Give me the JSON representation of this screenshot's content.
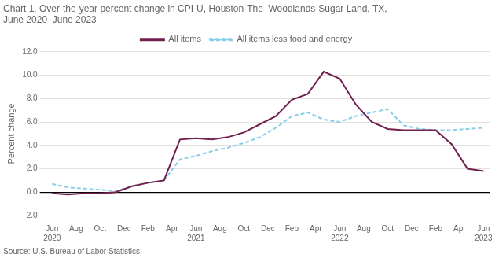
{
  "chart_data": {
    "type": "line",
    "title": "Chart 1. Over-the-year percent change in CPI-U, Houston-The  Woodlands-Sugar Land, TX,\nJune 2020–June 2023",
    "ylabel": "Percent change",
    "source": "Source: U.S. Bureau of Labor Statistics.",
    "x": [
      0,
      1.3333333333333333,
      2.6666666666666665,
      4,
      5.333333333333333,
      6.666666666666667,
      8,
      9.333333333333334,
      10.666666666666666,
      12,
      13.333333333333334,
      14.666666666666666,
      16,
      17.333333333333332,
      18.666666666666668,
      20,
      21.333333333333332,
      22.666666666666668,
      24,
      25.333333333333332,
      26.666666666666668,
      28,
      29.333333333333332,
      30.666666666666668,
      32,
      33.333333333333336,
      34.666666666666664,
      36
    ],
    "series": [
      {
        "name": "All items",
        "color": "#722050",
        "line_style": "solid",
        "values": [
          -0.1,
          -0.2,
          -0.1,
          -0.1,
          0.0,
          0.5,
          0.8,
          1.0,
          4.5,
          4.6,
          4.5,
          4.7,
          5.1,
          5.8,
          6.5,
          7.9,
          8.4,
          10.3,
          9.7,
          7.5,
          6.0,
          5.4,
          5.3,
          5.3,
          5.3,
          4.1,
          2.0,
          1.8
        ]
      },
      {
        "name": "All items less food and energy",
        "color": "#87CEEB",
        "line_style": "dashed",
        "values": [
          0.7,
          0.4,
          0.3,
          0.2,
          0.1,
          0.5,
          0.8,
          1.0,
          2.8,
          3.1,
          3.5,
          3.8,
          4.2,
          4.7,
          5.5,
          6.5,
          6.8,
          6.2,
          6.0,
          6.5,
          6.8,
          7.1,
          5.7,
          5.4,
          5.3,
          5.3,
          5.4,
          5.5
        ]
      }
    ],
    "xlim": [
      -0.5,
      36.5
    ],
    "xticks": [
      {
        "value": 0,
        "label": "Jun\n2020"
      },
      {
        "value": 2,
        "label": "Aug"
      },
      {
        "value": 4,
        "label": "Oct"
      },
      {
        "value": 6,
        "label": "Dec"
      },
      {
        "value": 8,
        "label": "Feb"
      },
      {
        "value": 10,
        "label": "Apr"
      },
      {
        "value": 12,
        "label": "Jun\n2021"
      },
      {
        "value": 14,
        "label": "Aug"
      },
      {
        "value": 16,
        "label": "Oct"
      },
      {
        "value": 18,
        "label": "Dec"
      },
      {
        "value": 20,
        "label": "Feb"
      },
      {
        "value": 22,
        "label": "Apr"
      },
      {
        "value": 24,
        "label": "Jun\n2022"
      },
      {
        "value": 26,
        "label": "Aug"
      },
      {
        "value": 28,
        "label": "Oct"
      },
      {
        "value": 30,
        "label": "Dec"
      },
      {
        "value": 32,
        "label": "Feb"
      },
      {
        "value": 34,
        "label": "Apr"
      },
      {
        "value": 36,
        "label": "Jun\n2023"
      }
    ],
    "ylim": [
      -2.0,
      12.0
    ],
    "yticks": [
      {
        "value": -2.0,
        "label": "-2.0"
      },
      {
        "value": 0.0,
        "label": "0.0"
      },
      {
        "value": 2.0,
        "label": "2.0"
      },
      {
        "value": 4.0,
        "label": "4.0"
      },
      {
        "value": 6.0,
        "label": "6.0"
      },
      {
        "value": 8.0,
        "label": "8.0"
      },
      {
        "value": 10.0,
        "label": "10.0"
      },
      {
        "value": 12.0,
        "label": "12.0"
      }
    ],
    "grid": true,
    "legend": "top"
  }
}
